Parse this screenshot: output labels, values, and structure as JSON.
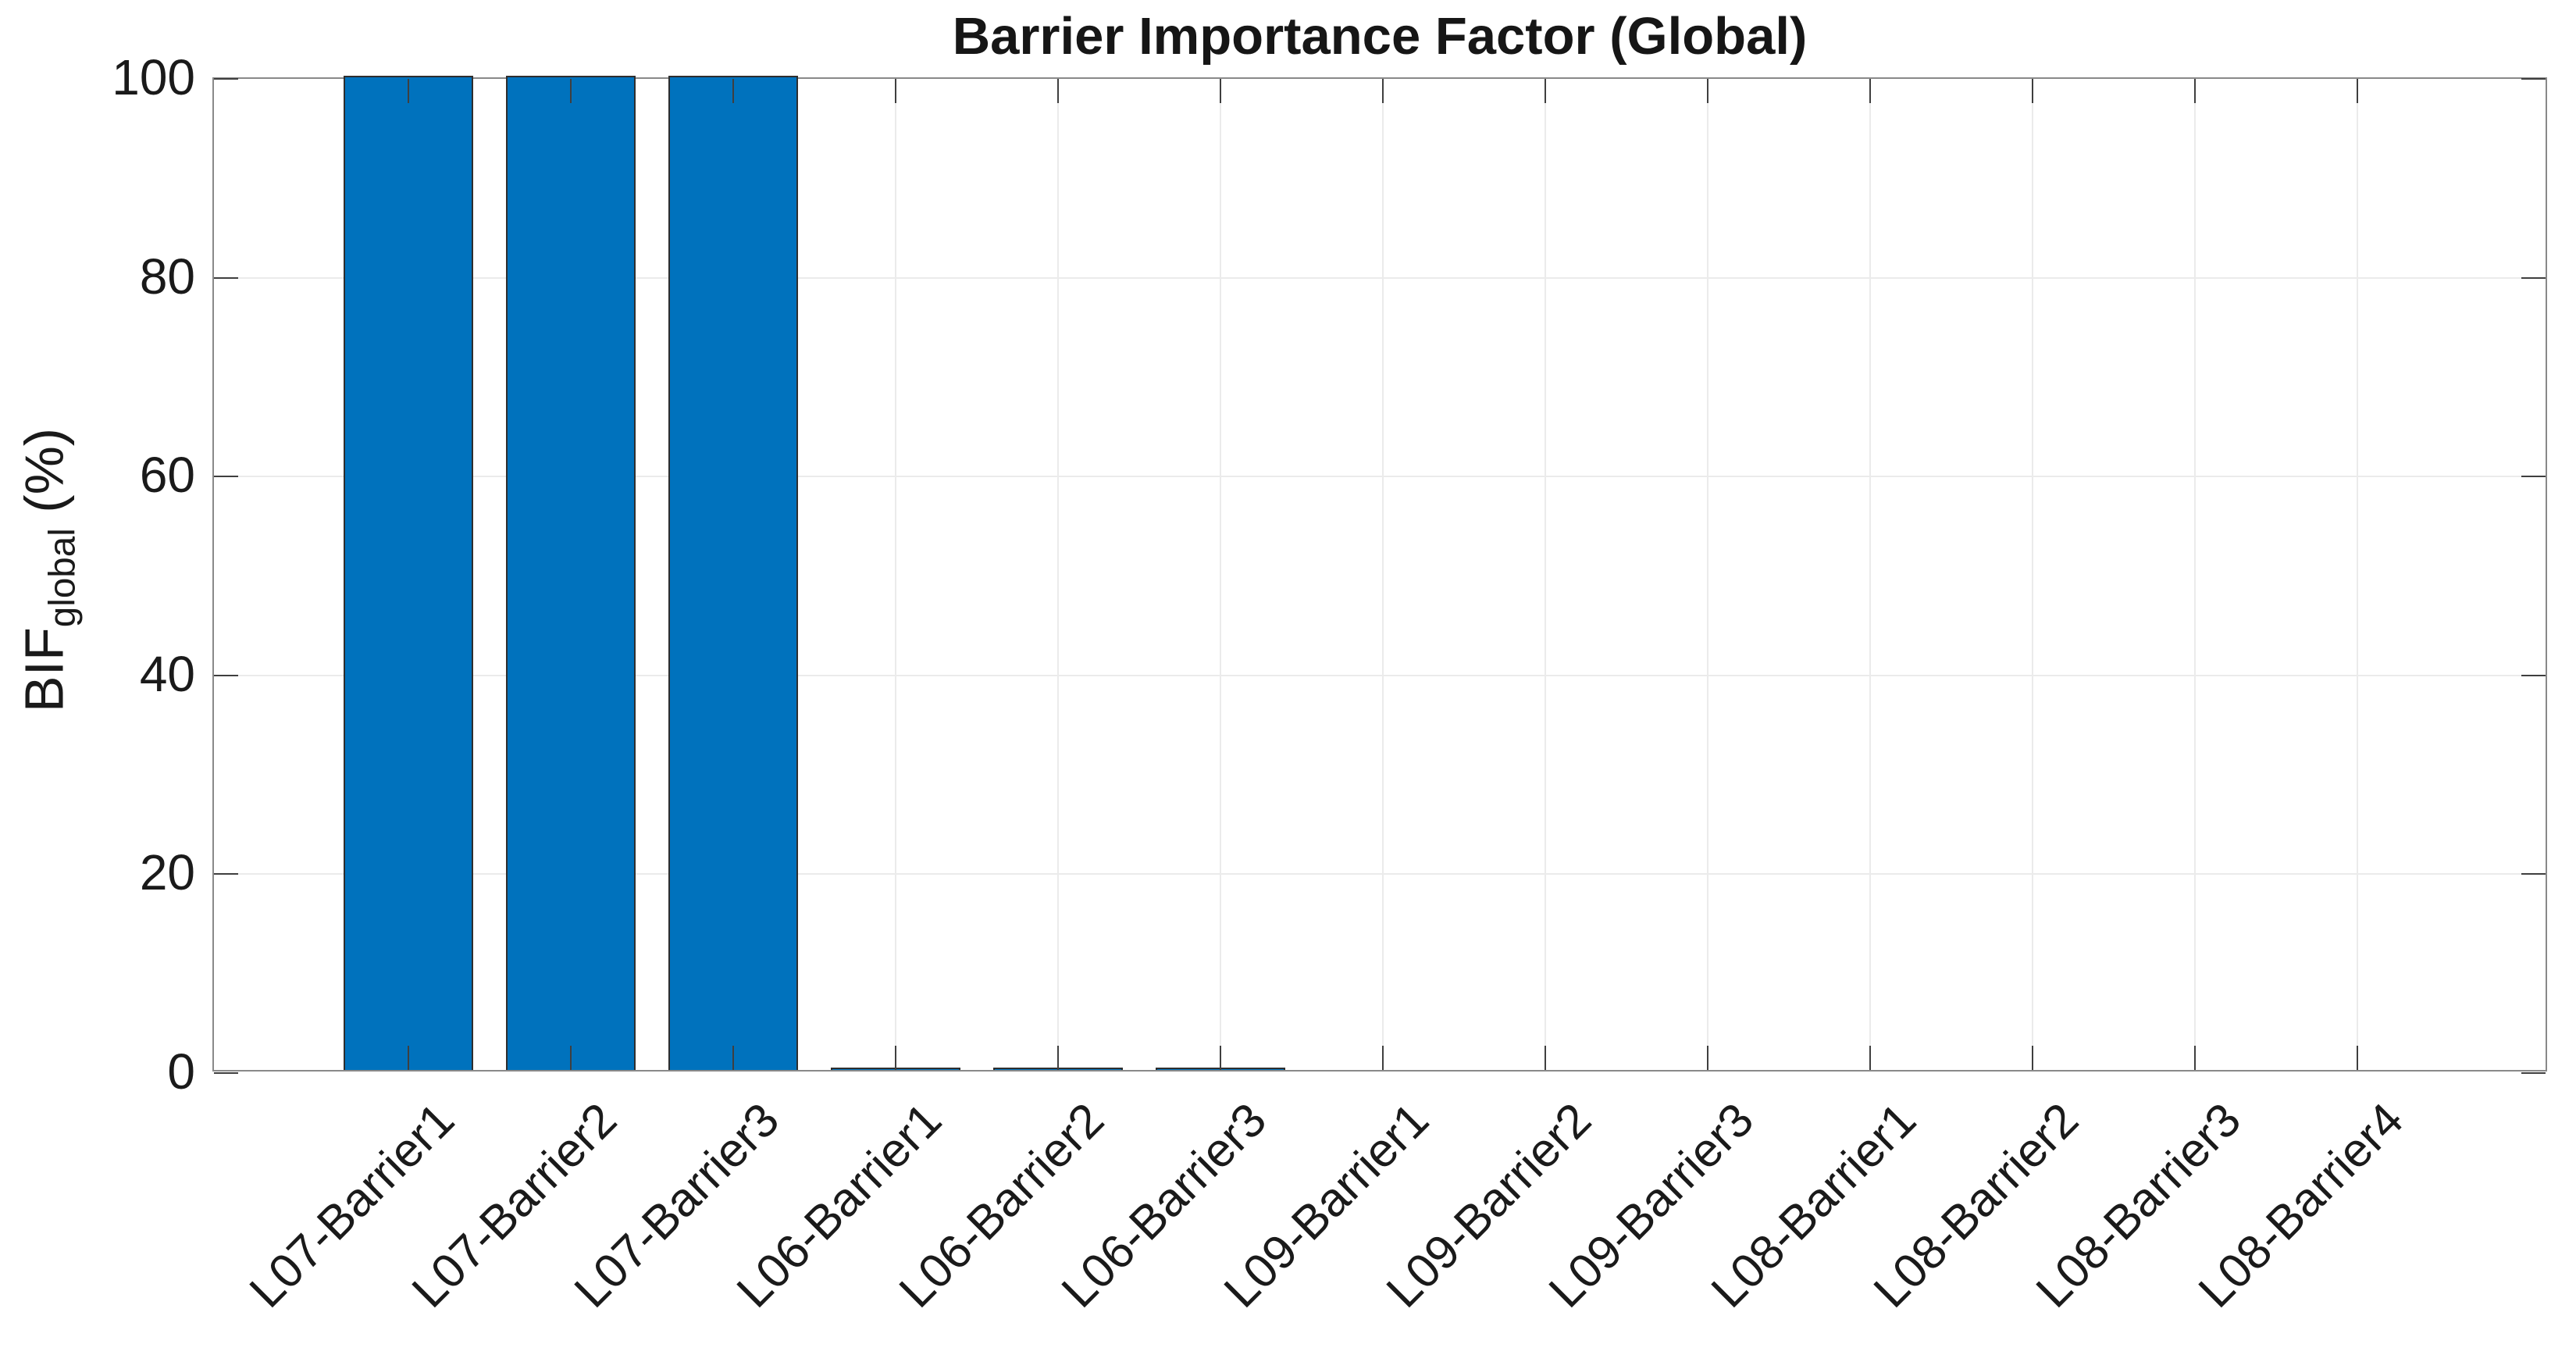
{
  "chart_data": {
    "type": "bar",
    "title": "Barrier Importance Factor (Global)",
    "ylabel": {
      "main": "BIF",
      "sub": "global",
      "unit": " (%)"
    },
    "categories": [
      "L07-Barrier1",
      "L07-Barrier2",
      "L07-Barrier3",
      "L06-Barrier1",
      "L06-Barrier2",
      "L06-Barrier3",
      "L09-Barrier1",
      "L09-Barrier2",
      "L09-Barrier3",
      "L08-Barrier1",
      "L08-Barrier2",
      "L08-Barrier3",
      "L08-Barrier4"
    ],
    "values": [
      100,
      100,
      100,
      0.25,
      0.25,
      0.25,
      0,
      0,
      0,
      0,
      0,
      0,
      0
    ],
    "yticks": [
      0,
      20,
      40,
      60,
      80,
      100
    ],
    "ylim": [
      0,
      100
    ],
    "grid": true,
    "legend": null,
    "bar_width_ratio": 0.8,
    "colors": {
      "bar_fill": "#0072BD",
      "bar_edge": "#2e2e2e",
      "axis_box": "#898989",
      "tick": "#3f3f3f",
      "grid_line": "#ebebeb",
      "text": "#1a1a1a",
      "background": "#ffffff"
    }
  }
}
